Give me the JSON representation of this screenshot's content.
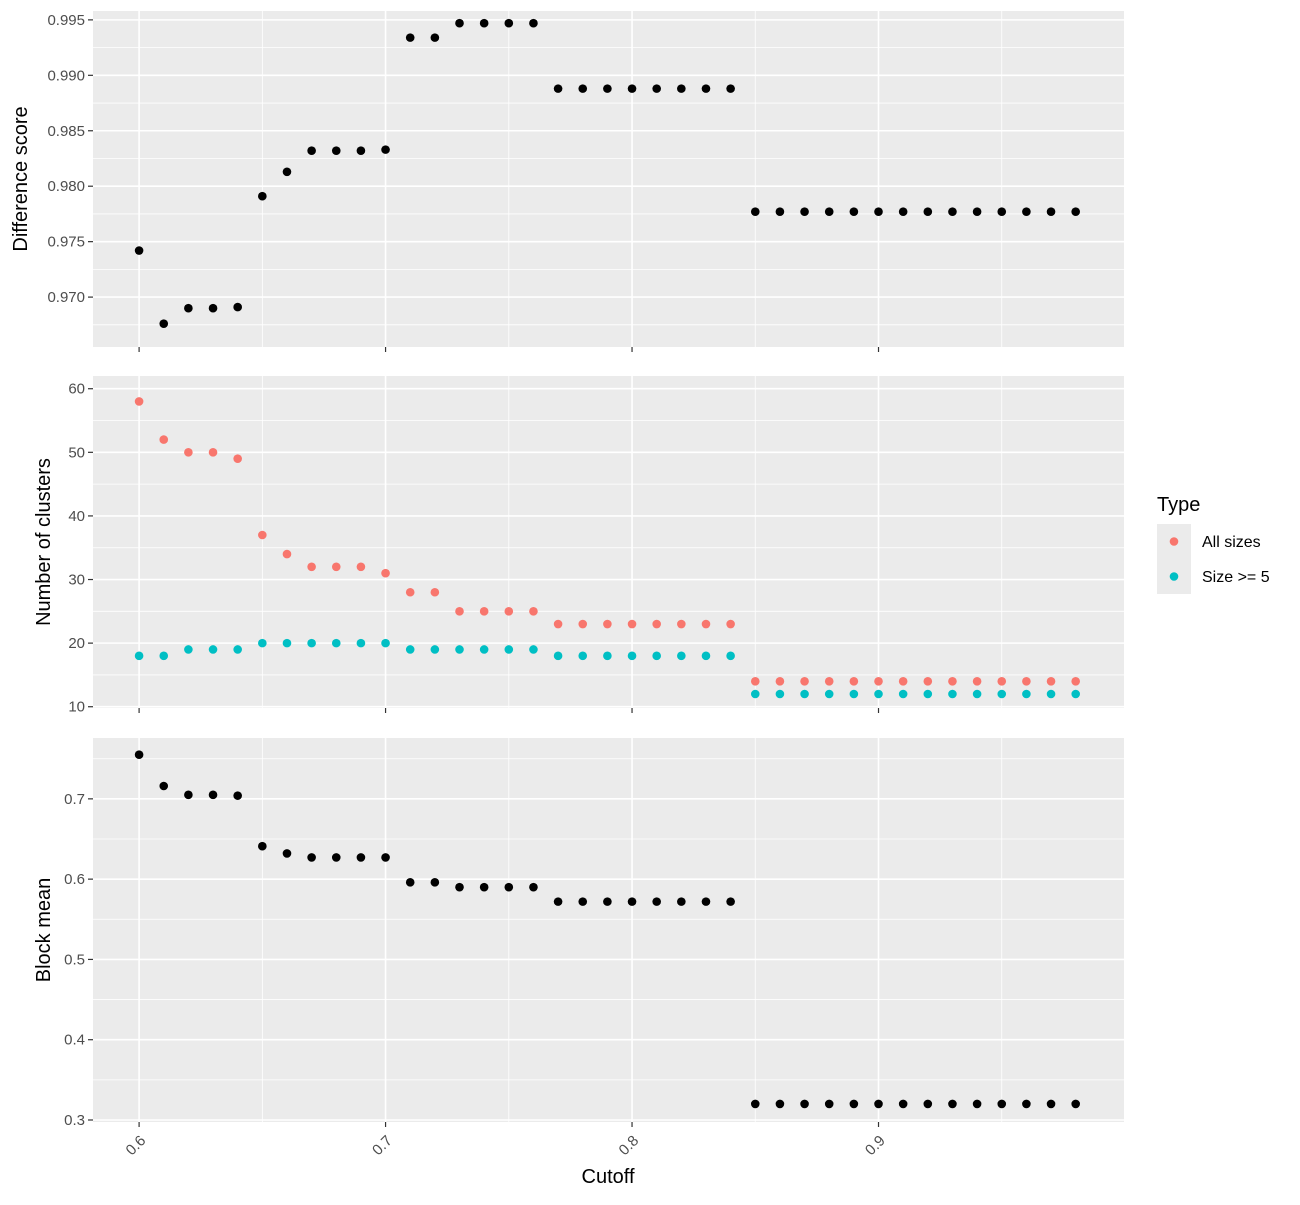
{
  "chart_data": [
    {
      "type": "scatter",
      "ylabel": "Difference score",
      "ylim": [
        0.9655,
        0.9958
      ],
      "yticks": [
        0.97,
        0.975,
        0.98,
        0.985,
        0.99,
        0.995
      ],
      "ytick_labels": [
        "0.970",
        "0.975",
        "0.980",
        "0.985",
        "0.990",
        "0.995"
      ],
      "grid": true,
      "series": [
        {
          "color": "#000000",
          "x": [
            0.6,
            0.61,
            0.62,
            0.63,
            0.64,
            0.65,
            0.66,
            0.67,
            0.68,
            0.69,
            0.7,
            0.71,
            0.72,
            0.73,
            0.74,
            0.75,
            0.76,
            0.77,
            0.78,
            0.79,
            0.8,
            0.81,
            0.82,
            0.83,
            0.84,
            0.85,
            0.86,
            0.87,
            0.88,
            0.89,
            0.9,
            0.91,
            0.92,
            0.93,
            0.94,
            0.95,
            0.96,
            0.97,
            0.98
          ],
          "y": [
            0.9742,
            0.9676,
            0.969,
            0.969,
            0.9691,
            0.9791,
            0.9813,
            0.9832,
            0.9832,
            0.9832,
            0.9833,
            0.9934,
            0.9934,
            0.9947,
            0.9947,
            0.9947,
            0.9947,
            0.9888,
            0.9888,
            0.9888,
            0.9888,
            0.9888,
            0.9888,
            0.9888,
            0.9888,
            0.9777,
            0.9777,
            0.9777,
            0.9777,
            0.9777,
            0.9777,
            0.9777,
            0.9777,
            0.9777,
            0.9777,
            0.9777,
            0.9777,
            0.9777,
            0.9777
          ]
        }
      ]
    },
    {
      "type": "scatter",
      "ylabel": "Number of clusters",
      "ylim": [
        9.8,
        62
      ],
      "yticks": [
        10,
        20,
        30,
        40,
        50,
        60
      ],
      "ytick_labels": [
        "10",
        "20",
        "30",
        "40",
        "50",
        "60"
      ],
      "grid": true,
      "series": [
        {
          "name": "All sizes",
          "color": "#F8766D",
          "x": [
            0.6,
            0.61,
            0.62,
            0.63,
            0.64,
            0.65,
            0.66,
            0.67,
            0.68,
            0.69,
            0.7,
            0.71,
            0.72,
            0.73,
            0.74,
            0.75,
            0.76,
            0.77,
            0.78,
            0.79,
            0.8,
            0.81,
            0.82,
            0.83,
            0.84,
            0.85,
            0.86,
            0.87,
            0.88,
            0.89,
            0.9,
            0.91,
            0.92,
            0.93,
            0.94,
            0.95,
            0.96,
            0.97,
            0.98
          ],
          "y": [
            58,
            52,
            50,
            50,
            49,
            37,
            34,
            32,
            32,
            32,
            31,
            28,
            28,
            25,
            25,
            25,
            25,
            23,
            23,
            23,
            23,
            23,
            23,
            23,
            23,
            14,
            14,
            14,
            14,
            14,
            14,
            14,
            14,
            14,
            14,
            14,
            14,
            14,
            14
          ]
        },
        {
          "name": "Size >= 5",
          "color": "#00BFC4",
          "x": [
            0.6,
            0.61,
            0.62,
            0.63,
            0.64,
            0.65,
            0.66,
            0.67,
            0.68,
            0.69,
            0.7,
            0.71,
            0.72,
            0.73,
            0.74,
            0.75,
            0.76,
            0.77,
            0.78,
            0.79,
            0.8,
            0.81,
            0.82,
            0.83,
            0.84,
            0.85,
            0.86,
            0.87,
            0.88,
            0.89,
            0.9,
            0.91,
            0.92,
            0.93,
            0.94,
            0.95,
            0.96,
            0.97,
            0.98
          ],
          "y": [
            18,
            18,
            19,
            19,
            19,
            20,
            20,
            20,
            20,
            20,
            20,
            19,
            19,
            19,
            19,
            19,
            19,
            18,
            18,
            18,
            18,
            18,
            18,
            18,
            18,
            12,
            12,
            12,
            12,
            12,
            12,
            12,
            12,
            12,
            12,
            12,
            12,
            12,
            12
          ]
        }
      ]
    },
    {
      "type": "scatter",
      "ylabel": "Block mean",
      "ylim": [
        0.2975,
        0.7758
      ],
      "yticks": [
        0.3,
        0.4,
        0.5,
        0.6,
        0.7
      ],
      "ytick_labels": [
        "0.3",
        "0.4",
        "0.5",
        "0.6",
        "0.7"
      ],
      "grid": true,
      "series": [
        {
          "color": "#000000",
          "x": [
            0.6,
            0.61,
            0.62,
            0.63,
            0.64,
            0.65,
            0.66,
            0.67,
            0.68,
            0.69,
            0.7,
            0.71,
            0.72,
            0.73,
            0.74,
            0.75,
            0.76,
            0.77,
            0.78,
            0.79,
            0.8,
            0.81,
            0.82,
            0.83,
            0.84,
            0.85,
            0.86,
            0.87,
            0.88,
            0.89,
            0.9,
            0.91,
            0.92,
            0.93,
            0.94,
            0.95,
            0.96,
            0.97,
            0.98
          ],
          "y": [
            0.755,
            0.716,
            0.705,
            0.705,
            0.704,
            0.641,
            0.632,
            0.627,
            0.627,
            0.627,
            0.627,
            0.596,
            0.596,
            0.59,
            0.59,
            0.59,
            0.59,
            0.572,
            0.572,
            0.572,
            0.572,
            0.572,
            0.572,
            0.572,
            0.572,
            0.32,
            0.32,
            0.32,
            0.32,
            0.32,
            0.32,
            0.32,
            0.32,
            0.32,
            0.32,
            0.32,
            0.32,
            0.32,
            0.32
          ]
        }
      ]
    }
  ],
  "x_axis": {
    "label": "Cutoff",
    "xlim": [
      0.5813,
      0.9996
    ],
    "ticks": [
      0.6,
      0.7,
      0.8,
      0.9
    ],
    "tick_labels": [
      "0.6",
      "0.7",
      "0.8",
      "0.9"
    ],
    "minor_ticks": [
      0.65,
      0.75,
      0.85,
      0.95
    ]
  },
  "legend": {
    "title": "Type",
    "placement": "right",
    "entries": [
      {
        "label": "All sizes",
        "color": "#F8766D"
      },
      {
        "label": "Size >= 5",
        "color": "#00BFC4"
      }
    ]
  }
}
